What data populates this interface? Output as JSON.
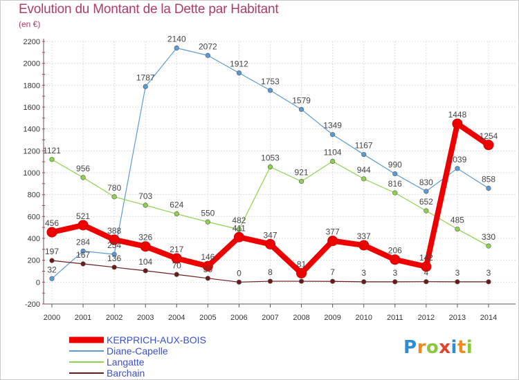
{
  "title": "Evolution du Montant de la Dette par Habitant",
  "subtitle": "(en €)",
  "logo_text": "Proxiti",
  "chart_data": {
    "type": "line",
    "title": "Evolution du Montant de la Dette par Habitant",
    "subtitle": "(en €)",
    "x": [
      2000,
      2001,
      2002,
      2003,
      2004,
      2005,
      2006,
      2007,
      2008,
      2009,
      2010,
      2011,
      2012,
      2013,
      2014
    ],
    "ylim": [
      -200,
      2200
    ],
    "yticks": [
      -200,
      0,
      200,
      400,
      600,
      800,
      1000,
      1200,
      1400,
      1600,
      1800,
      2000,
      2200
    ],
    "grid": true,
    "legend_position": "bottom-left",
    "series": [
      {
        "name": "Diane-Capelle",
        "color": "#5b9bd5",
        "values": [
          32,
          284,
          254,
          1787,
          2140,
          2072,
          1912,
          1753,
          1579,
          1349,
          1167,
          990,
          830,
          1039,
          858
        ],
        "labels": [
          "32",
          "284",
          "254",
          "1787",
          "2140",
          "2072",
          "1912",
          "1753",
          "1579",
          "1349",
          "1167",
          "990",
          "830",
          "1039",
          "858"
        ]
      },
      {
        "name": "Langatte",
        "color": "#8fd14f",
        "values": [
          1121,
          956,
          780,
          703,
          624,
          550,
          482,
          1053,
          921,
          1104,
          944,
          816,
          652,
          485,
          330
        ],
        "labels": [
          "1121",
          "956",
          "780",
          "703",
          "624",
          "550",
          "482",
          "1053",
          "921",
          "1104",
          "944",
          "816",
          "652",
          "485",
          "330"
        ]
      },
      {
        "name": "Barchain",
        "color": "#6b1a1a",
        "values": [
          197,
          167,
          136,
          104,
          70,
          35,
          0,
          8,
          8,
          7,
          3,
          3,
          4,
          3,
          3
        ],
        "labels": [
          "197",
          "167",
          "136",
          "104",
          "70",
          "35",
          "0",
          "8",
          "",
          "7",
          "3",
          "3",
          "4",
          "3",
          "3"
        ]
      },
      {
        "name": "KERPRICH-AUX-BOIS",
        "color": "#ee0000",
        "values": [
          456,
          521,
          388,
          326,
          217,
          146,
          411,
          347,
          81,
          377,
          337,
          206,
          142,
          1448,
          1254
        ],
        "labels": [
          "456",
          "521",
          "388",
          "326",
          "217",
          "146",
          "411",
          "347",
          "81",
          "377",
          "337",
          "206",
          "142",
          "1448",
          "1254"
        ]
      }
    ],
    "legend": [
      {
        "name": "KERPRICH-AUX-BOIS",
        "color": "#ee0000",
        "weight": "heavy"
      },
      {
        "name": "Diane-Capelle",
        "color": "#5b9bd5",
        "weight": "thin"
      },
      {
        "name": "Langatte",
        "color": "#8fd14f",
        "weight": "thin"
      },
      {
        "name": "Barchain",
        "color": "#6b1a1a",
        "weight": "thin"
      }
    ]
  }
}
